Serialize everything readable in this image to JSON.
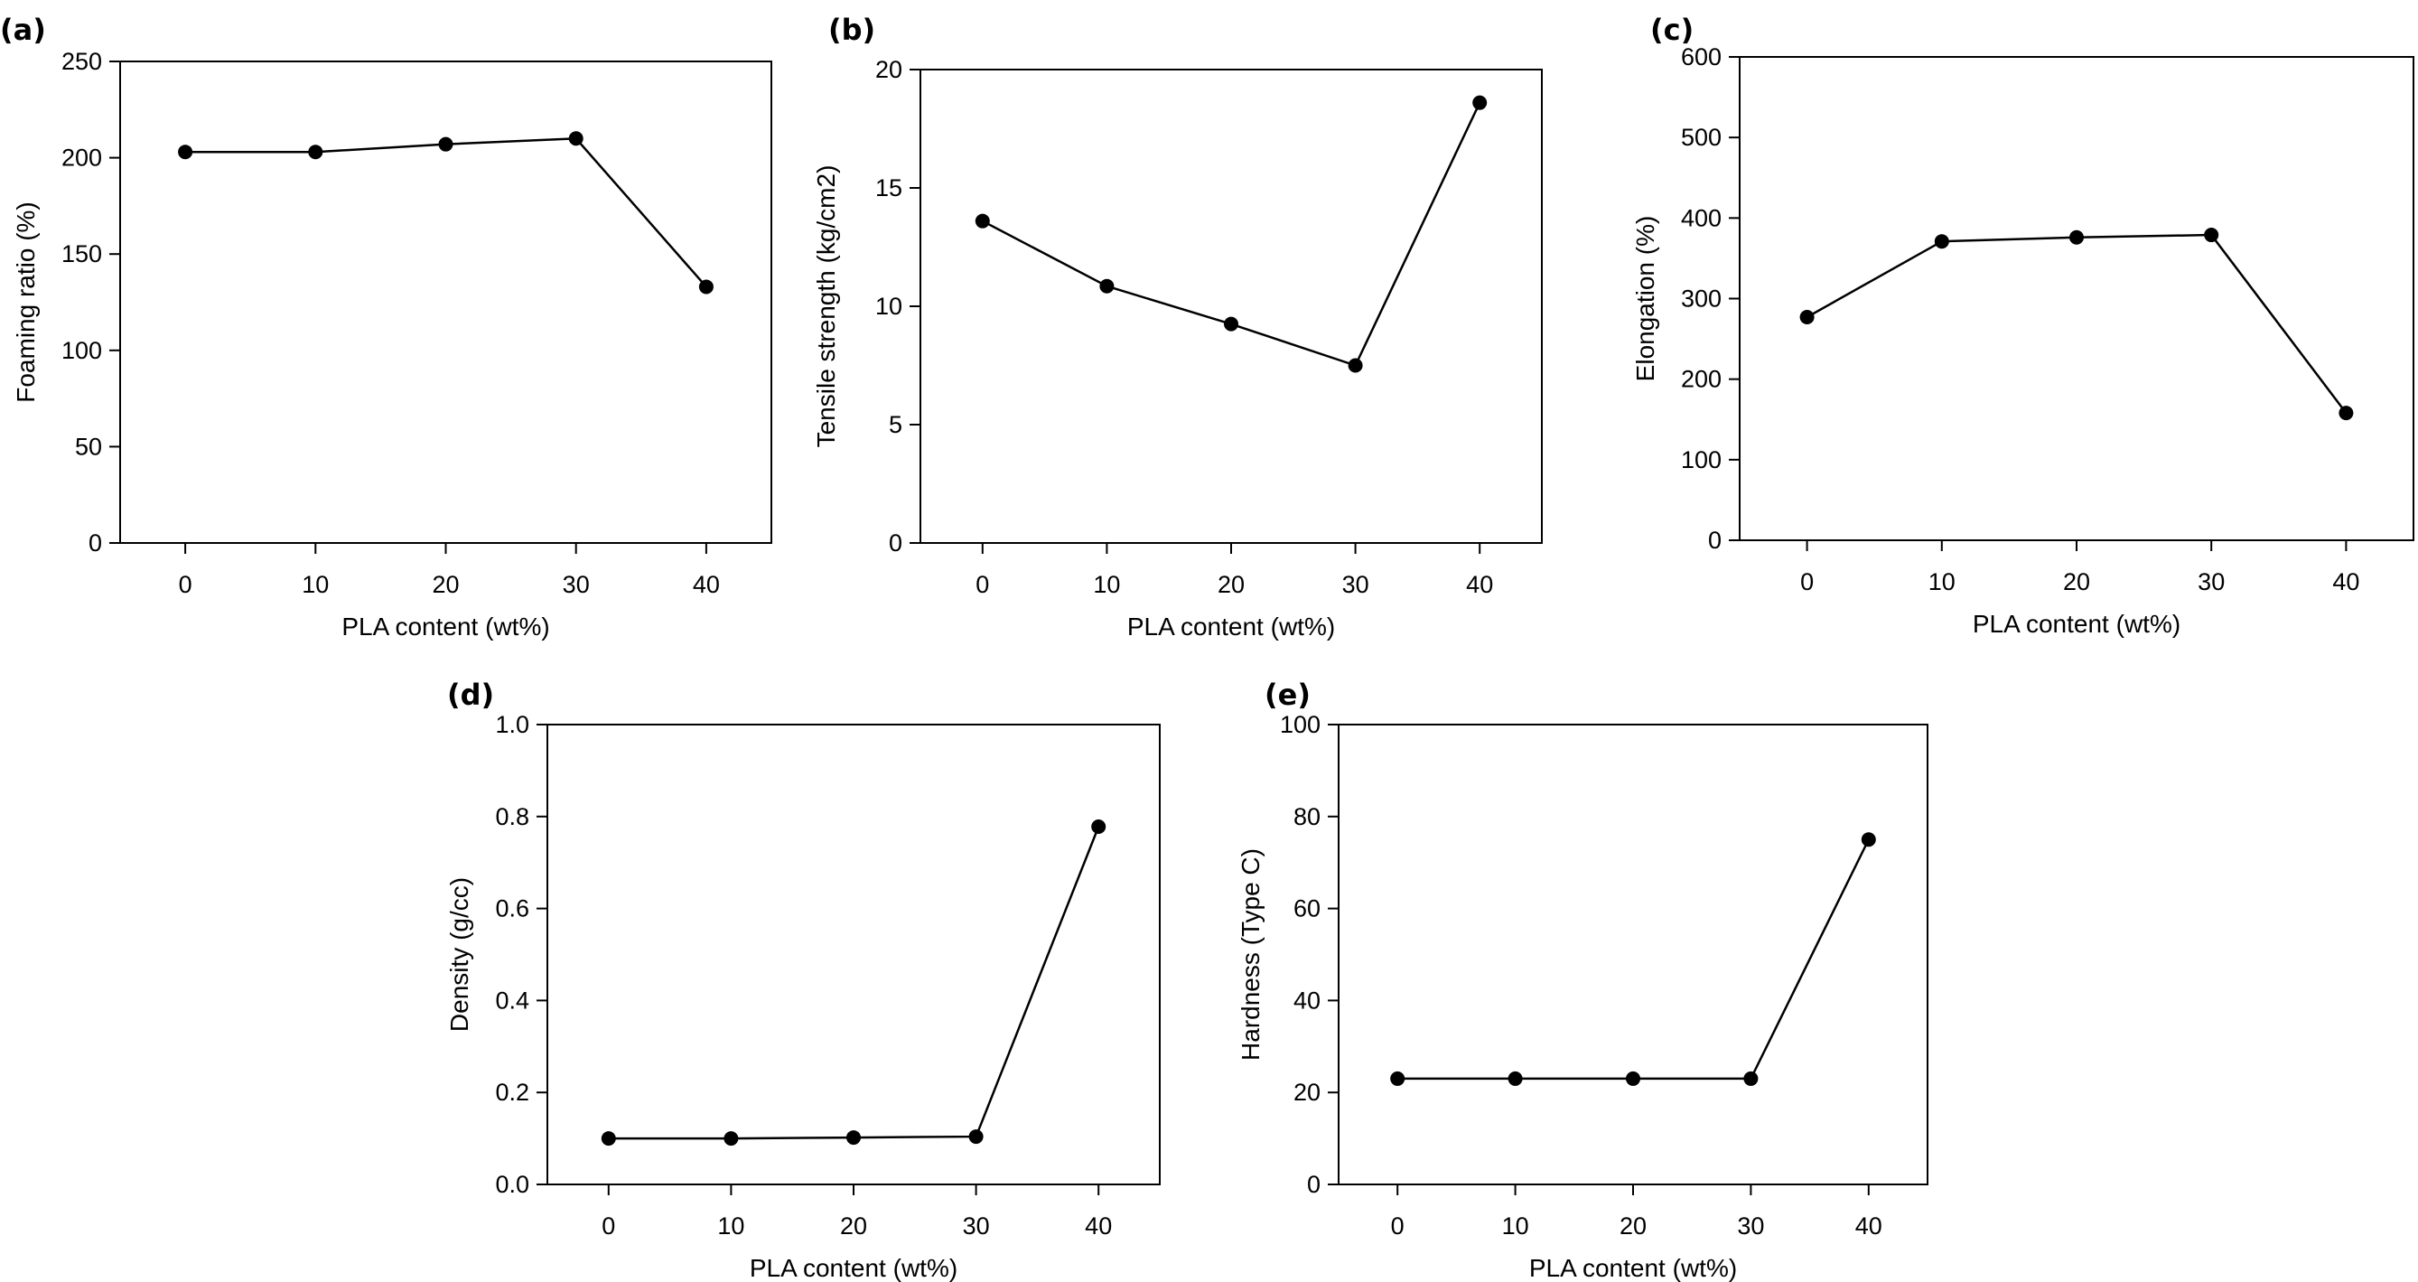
{
  "chart_data": [
    {
      "panel_label": "(a)",
      "type": "line",
      "xlabel": "PLA content (wt%)",
      "ylabel": "Foaming ratio (%)",
      "x": [
        0,
        10,
        20,
        30,
        40
      ],
      "y": [
        203,
        203,
        207,
        210,
        133
      ],
      "xlim": [
        -5,
        45
      ],
      "ylim": [
        0,
        250
      ],
      "xticks": [
        0,
        10,
        20,
        30,
        40
      ],
      "yticks": [
        0,
        50,
        100,
        150,
        200,
        250
      ],
      "grid": false,
      "marker": "filled-circle",
      "color": "#000000"
    },
    {
      "panel_label": "(b)",
      "type": "line",
      "xlabel": "PLA content (wt%)",
      "ylabel": "Tensile strength (kg/cm2)",
      "x": [
        0,
        10,
        20,
        30,
        40
      ],
      "y": [
        13.6,
        10.85,
        9.25,
        7.5,
        18.6
      ],
      "xlim": [
        -5,
        45
      ],
      "ylim": [
        0,
        20
      ],
      "xticks": [
        0,
        10,
        20,
        30,
        40
      ],
      "yticks": [
        0,
        5,
        10,
        15,
        20
      ],
      "grid": false,
      "marker": "filled-circle",
      "color": "#000000"
    },
    {
      "panel_label": "(c)",
      "type": "line",
      "xlabel": "PLA content (wt%)",
      "ylabel": "Elongation (%)",
      "x": [
        0,
        10,
        20,
        30,
        40
      ],
      "y": [
        277,
        371,
        376,
        379,
        158
      ],
      "xlim": [
        -5,
        45
      ],
      "ylim": [
        0,
        600
      ],
      "xticks": [
        0,
        10,
        20,
        30,
        40
      ],
      "yticks": [
        0,
        100,
        200,
        300,
        400,
        500,
        600
      ],
      "grid": false,
      "marker": "filled-circle",
      "color": "#000000"
    },
    {
      "panel_label": "(d)",
      "type": "line",
      "xlabel": "PLA content (wt%)",
      "ylabel": "Density (g/cc)",
      "x": [
        0,
        10,
        20,
        30,
        40
      ],
      "y": [
        0.1,
        0.1,
        0.102,
        0.104,
        0.778
      ],
      "xlim": [
        -5,
        45
      ],
      "ylim": [
        0,
        1.0
      ],
      "xticks": [
        0,
        10,
        20,
        30,
        40
      ],
      "yticks": [
        "0.0",
        "0.2",
        "0.4",
        "0.6",
        "0.8",
        "1.0"
      ],
      "grid": false,
      "marker": "filled-circle",
      "color": "#000000"
    },
    {
      "panel_label": "(e)",
      "type": "line",
      "xlabel": "PLA content (wt%)",
      "ylabel": "Hardness (Type C)",
      "x": [
        0,
        10,
        20,
        30,
        40
      ],
      "y": [
        23,
        23,
        23,
        23,
        75
      ],
      "xlim": [
        -5,
        45
      ],
      "ylim": [
        0,
        100
      ],
      "xticks": [
        0,
        10,
        20,
        30,
        40
      ],
      "yticks": [
        0,
        20,
        40,
        60,
        80,
        100
      ],
      "grid": false,
      "marker": "filled-circle",
      "color": "#000000"
    }
  ]
}
